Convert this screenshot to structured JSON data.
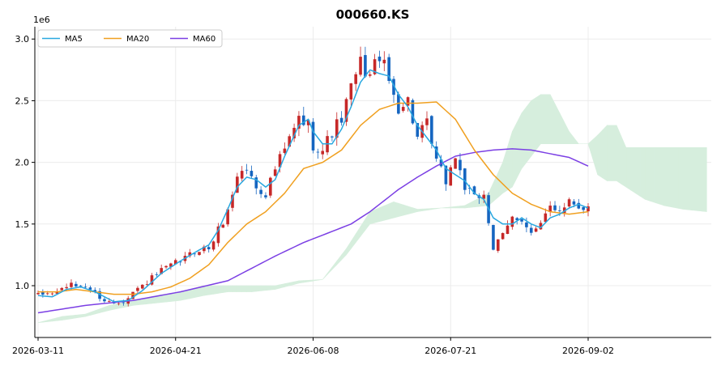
{
  "chart_data": {
    "type": "candlestick",
    "title": "000660.KS",
    "y_multiplier_label": "1e6",
    "ylim": [
      0.58,
      3.1
    ],
    "y_ticks": [
      1.0,
      1.5,
      2.0,
      2.5,
      3.0
    ],
    "y_tick_labels": [
      "1.0",
      "1.5",
      "2.0",
      "2.5",
      "3.0"
    ],
    "x_tick_labels": [
      "2026-03-11",
      "2026-04-21",
      "2026-06-08",
      "2026-07-21",
      "2026-09-02"
    ],
    "x_tick_index": [
      0,
      29,
      58,
      87,
      116
    ],
    "n_days": 117,
    "n_total": 142,
    "grid": true,
    "legend_position": "top-left",
    "colors": {
      "up": "#c62828",
      "down": "#1565c0",
      "ma5": "#29a8e0",
      "ma20": "#f0a020",
      "ma60": "#7b3fe4",
      "cloud_bull": "#d6eedd",
      "cloud_bear": "#fcdcdc"
    },
    "legend": [
      {
        "name": "MA5",
        "color": "#29a8e0"
      },
      {
        "name": "MA20",
        "color": "#f0a020"
      },
      {
        "name": "MA60",
        "color": "#7b3fe4"
      }
    ],
    "close_keypoints": [
      [
        0,
        0.92
      ],
      [
        4,
        0.95
      ],
      [
        6,
        1.0
      ],
      [
        10,
        1.0
      ],
      [
        14,
        0.88
      ],
      [
        16,
        0.86
      ],
      [
        18,
        0.88
      ],
      [
        20,
        0.95
      ],
      [
        22,
        1.0
      ],
      [
        26,
        1.12
      ],
      [
        30,
        1.2
      ],
      [
        34,
        1.3
      ],
      [
        36,
        1.3
      ],
      [
        38,
        1.45
      ],
      [
        40,
        1.6
      ],
      [
        42,
        1.9
      ],
      [
        44,
        1.95
      ],
      [
        46,
        1.8
      ],
      [
        48,
        1.75
      ],
      [
        50,
        1.95
      ],
      [
        52,
        2.1
      ],
      [
        55,
        2.35
      ],
      [
        57,
        2.3
      ],
      [
        58,
        2.15
      ],
      [
        60,
        2.1
      ],
      [
        62,
        2.25
      ],
      [
        64,
        2.35
      ],
      [
        66,
        2.6
      ],
      [
        68,
        2.8
      ],
      [
        70,
        2.7
      ],
      [
        72,
        2.88
      ],
      [
        74,
        2.65
      ],
      [
        76,
        2.45
      ],
      [
        78,
        2.5
      ],
      [
        80,
        2.2
      ],
      [
        82,
        2.3
      ],
      [
        84,
        2.0
      ],
      [
        86,
        1.85
      ],
      [
        88,
        2.05
      ],
      [
        90,
        1.8
      ],
      [
        92,
        1.7
      ],
      [
        94,
        1.75
      ],
      [
        96,
        1.3
      ],
      [
        98,
        1.4
      ],
      [
        100,
        1.55
      ],
      [
        102,
        1.55
      ],
      [
        104,
        1.42
      ],
      [
        106,
        1.48
      ],
      [
        108,
        1.65
      ],
      [
        110,
        1.62
      ],
      [
        112,
        1.7
      ],
      [
        114,
        1.65
      ],
      [
        116,
        1.63
      ]
    ],
    "ma5_keypoints": [
      [
        0,
        0.92
      ],
      [
        3,
        0.91
      ],
      [
        6,
        0.97
      ],
      [
        9,
        0.99
      ],
      [
        12,
        0.95
      ],
      [
        16,
        0.87
      ],
      [
        19,
        0.88
      ],
      [
        22,
        0.96
      ],
      [
        26,
        1.1
      ],
      [
        30,
        1.2
      ],
      [
        34,
        1.29
      ],
      [
        36,
        1.33
      ],
      [
        38,
        1.45
      ],
      [
        40,
        1.62
      ],
      [
        42,
        1.8
      ],
      [
        44,
        1.88
      ],
      [
        46,
        1.86
      ],
      [
        48,
        1.8
      ],
      [
        50,
        1.86
      ],
      [
        52,
        2.05
      ],
      [
        55,
        2.3
      ],
      [
        57,
        2.35
      ],
      [
        58,
        2.25
      ],
      [
        60,
        2.15
      ],
      [
        62,
        2.15
      ],
      [
        64,
        2.27
      ],
      [
        66,
        2.45
      ],
      [
        68,
        2.65
      ],
      [
        70,
        2.75
      ],
      [
        72,
        2.72
      ],
      [
        74,
        2.7
      ],
      [
        76,
        2.55
      ],
      [
        78,
        2.45
      ],
      [
        80,
        2.3
      ],
      [
        82,
        2.2
      ],
      [
        84,
        2.1
      ],
      [
        86,
        1.95
      ],
      [
        88,
        1.9
      ],
      [
        90,
        1.85
      ],
      [
        92,
        1.75
      ],
      [
        94,
        1.7
      ],
      [
        96,
        1.55
      ],
      [
        98,
        1.5
      ],
      [
        100,
        1.5
      ],
      [
        102,
        1.55
      ],
      [
        104,
        1.5
      ],
      [
        106,
        1.47
      ],
      [
        108,
        1.55
      ],
      [
        110,
        1.58
      ],
      [
        112,
        1.63
      ],
      [
        114,
        1.66
      ],
      [
        116,
        1.63
      ]
    ],
    "ma20_keypoints": [
      [
        0,
        0.95
      ],
      [
        4,
        0.95
      ],
      [
        8,
        0.97
      ],
      [
        12,
        0.95
      ],
      [
        16,
        0.93
      ],
      [
        20,
        0.93
      ],
      [
        24,
        0.95
      ],
      [
        28,
        0.99
      ],
      [
        32,
        1.06
      ],
      [
        36,
        1.17
      ],
      [
        40,
        1.35
      ],
      [
        44,
        1.5
      ],
      [
        48,
        1.6
      ],
      [
        52,
        1.75
      ],
      [
        56,
        1.95
      ],
      [
        60,
        2.0
      ],
      [
        64,
        2.1
      ],
      [
        68,
        2.3
      ],
      [
        72,
        2.43
      ],
      [
        76,
        2.48
      ],
      [
        80,
        2.48
      ],
      [
        84,
        2.49
      ],
      [
        88,
        2.35
      ],
      [
        92,
        2.1
      ],
      [
        96,
        1.9
      ],
      [
        100,
        1.75
      ],
      [
        104,
        1.66
      ],
      [
        108,
        1.6
      ],
      [
        112,
        1.58
      ],
      [
        116,
        1.6
      ]
    ],
    "ma60_keypoints": [
      [
        0,
        0.78
      ],
      [
        10,
        0.84
      ],
      [
        20,
        0.88
      ],
      [
        30,
        0.95
      ],
      [
        40,
        1.04
      ],
      [
        50,
        1.24
      ],
      [
        56,
        1.35
      ],
      [
        60,
        1.41
      ],
      [
        66,
        1.5
      ],
      [
        70,
        1.6
      ],
      [
        76,
        1.78
      ],
      [
        80,
        1.88
      ],
      [
        84,
        1.97
      ],
      [
        88,
        2.05
      ],
      [
        92,
        2.08
      ],
      [
        96,
        2.1
      ],
      [
        100,
        2.11
      ],
      [
        104,
        2.1
      ],
      [
        108,
        2.07
      ],
      [
        112,
        2.04
      ],
      [
        116,
        1.97
      ]
    ],
    "span_a_keypoints": [
      [
        0,
        0.7
      ],
      [
        5,
        0.75
      ],
      [
        10,
        0.77
      ],
      [
        15,
        0.84
      ],
      [
        20,
        0.88
      ],
      [
        25,
        0.92
      ],
      [
        30,
        0.95
      ],
      [
        35,
        1.0
      ],
      [
        40,
        1.0
      ],
      [
        45,
        1.0
      ],
      [
        50,
        1.0
      ],
      [
        55,
        1.04
      ],
      [
        60,
        1.05
      ],
      [
        65,
        1.3
      ],
      [
        70,
        1.6
      ],
      [
        75,
        1.68
      ],
      [
        80,
        1.62
      ],
      [
        85,
        1.63
      ],
      [
        90,
        1.65
      ],
      [
        95,
        1.75
      ],
      [
        98,
        2.0
      ],
      [
        100,
        2.25
      ],
      [
        102,
        2.4
      ],
      [
        104,
        2.5
      ],
      [
        106,
        2.55
      ],
      [
        108,
        2.55
      ],
      [
        110,
        2.4
      ],
      [
        112,
        2.25
      ],
      [
        114,
        2.15
      ],
      [
        116,
        2.15
      ],
      [
        118,
        2.22
      ],
      [
        120,
        2.3
      ],
      [
        122,
        2.3
      ],
      [
        124,
        2.12
      ],
      [
        141,
        2.12
      ]
    ],
    "span_b_keypoints": [
      [
        0,
        0.7
      ],
      [
        5,
        0.72
      ],
      [
        10,
        0.75
      ],
      [
        15,
        0.8
      ],
      [
        20,
        0.84
      ],
      [
        25,
        0.86
      ],
      [
        30,
        0.88
      ],
      [
        35,
        0.92
      ],
      [
        40,
        0.95
      ],
      [
        45,
        0.95
      ],
      [
        50,
        0.97
      ],
      [
        55,
        1.02
      ],
      [
        60,
        1.05
      ],
      [
        65,
        1.25
      ],
      [
        70,
        1.5
      ],
      [
        75,
        1.55
      ],
      [
        80,
        1.6
      ],
      [
        85,
        1.63
      ],
      [
        90,
        1.63
      ],
      [
        95,
        1.65
      ],
      [
        98,
        1.75
      ],
      [
        100,
        1.8
      ],
      [
        102,
        1.95
      ],
      [
        104,
        2.05
      ],
      [
        106,
        2.15
      ],
      [
        108,
        2.15
      ],
      [
        110,
        2.15
      ],
      [
        112,
        2.15
      ],
      [
        114,
        2.15
      ],
      [
        116,
        2.15
      ],
      [
        118,
        1.9
      ],
      [
        120,
        1.85
      ],
      [
        122,
        1.85
      ],
      [
        124,
        1.8
      ],
      [
        128,
        1.7
      ],
      [
        132,
        1.65
      ],
      [
        136,
        1.62
      ],
      [
        141,
        1.6
      ]
    ]
  }
}
